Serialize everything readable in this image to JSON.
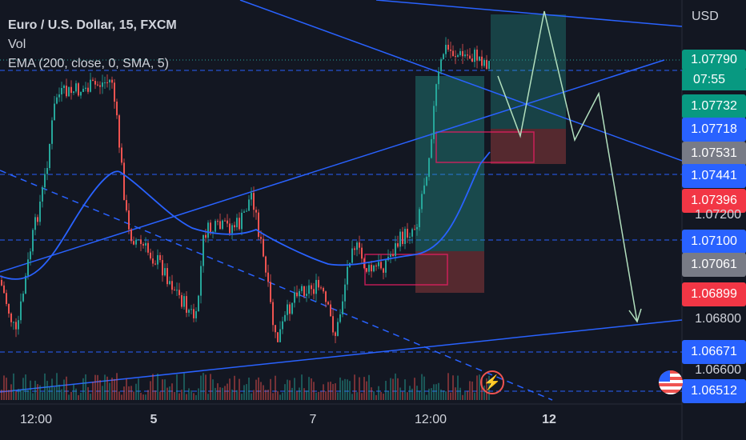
{
  "header": {
    "symbol_title": "Euro / U.S. Dollar, 15, FXCM",
    "vol_label": "Vol",
    "indicator_label": "EMA (200, close, 0, SMA, 5)"
  },
  "price_axis": {
    "currency": "USD",
    "current_price": "1.07790",
    "countdown": "07:55",
    "labels": [
      {
        "text": "1.07732",
        "color": "#089981"
      },
      {
        "text": "1.07718",
        "color": "#2962ff"
      },
      {
        "text": "1.07531",
        "color": "#787b86"
      },
      {
        "text": "1.07441",
        "color": "#2962ff"
      },
      {
        "text": "1.07396",
        "color": "#f23645"
      },
      {
        "text": "1.07100",
        "color": "#2962ff"
      },
      {
        "text": "1.07061",
        "color": "#787b86"
      },
      {
        "text": "1.06899",
        "color": "#f23645"
      },
      {
        "text": "1.06671",
        "color": "#2962ff"
      },
      {
        "text": "1.06512",
        "color": "#2962ff"
      }
    ],
    "ticks": [
      "1.07200",
      "1.06800",
      "1.06600"
    ]
  },
  "time_axis": {
    "labels": [
      {
        "text": "12:00",
        "bold": false
      },
      {
        "text": "5",
        "bold": true
      },
      {
        "text": "7",
        "bold": false
      },
      {
        "text": "12:00",
        "bold": false
      },
      {
        "text": "12",
        "bold": true
      }
    ]
  },
  "icons": {
    "bolt": "lightning-icon",
    "flag": "us-flag-icon"
  },
  "colors": {
    "up": "#26a69a",
    "down": "#ef5350",
    "background": "#131722",
    "trendline": "#2962ff"
  }
}
